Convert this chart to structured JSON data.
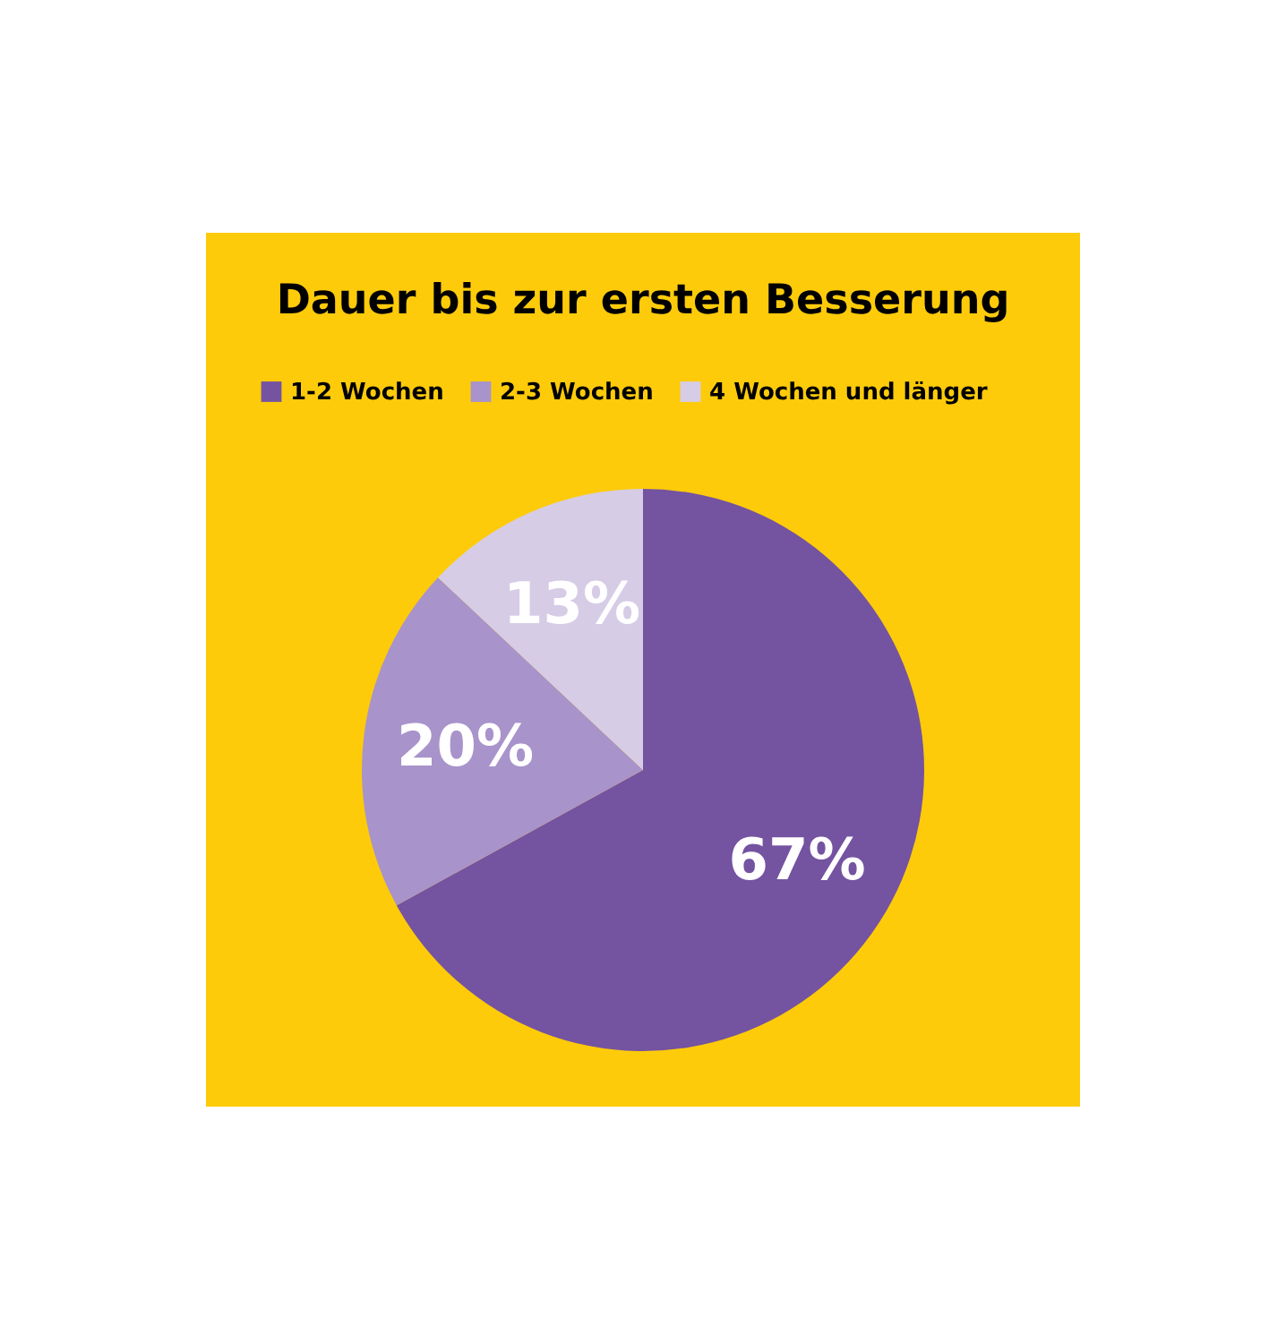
{
  "chart_data": {
    "type": "pie",
    "title": "Dauer bis zur ersten Besserung",
    "categories": [
      "1-2 Wochen",
      "2-3 Wochen",
      "4 Wochen und länger"
    ],
    "values": [
      67,
      20,
      13
    ],
    "colors": [
      "#7453a1",
      "#a893cb",
      "#d6cce6"
    ],
    "value_labels": [
      "67%",
      "20%",
      "13%"
    ],
    "legend": "top"
  }
}
